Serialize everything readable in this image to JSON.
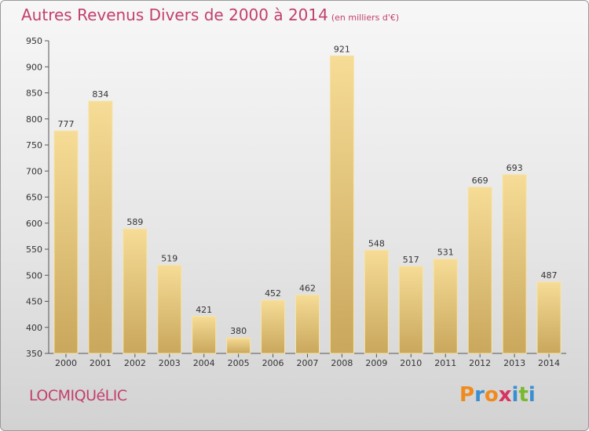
{
  "chart_data": {
    "type": "bar",
    "title": "Autres Revenus Divers de 2000 à 2014",
    "subtitle": "(en milliers d'€)",
    "categories": [
      "2000",
      "2001",
      "2002",
      "2003",
      "2004",
      "2005",
      "2006",
      "2007",
      "2008",
      "2009",
      "2010",
      "2011",
      "2012",
      "2013",
      "2014"
    ],
    "values": [
      777,
      834,
      589,
      519,
      421,
      380,
      452,
      462,
      921,
      548,
      517,
      531,
      669,
      693,
      487
    ],
    "ylim": [
      350,
      950
    ],
    "yticks": [
      350,
      400,
      450,
      500,
      550,
      600,
      650,
      700,
      750,
      800,
      850,
      900,
      950
    ],
    "grid": false,
    "xlabel": "",
    "ylabel": "",
    "bar_color": "#e8c878"
  },
  "footer": {
    "commune": "LOCMIQUéLIC",
    "brand": {
      "letters": [
        "P",
        "r",
        "o",
        "x",
        "i",
        "t",
        "i"
      ],
      "colors": [
        "#f08a1c",
        "#3a8fd0",
        "#f08a1c",
        "#d8345f",
        "#3a8fd0",
        "#7ab82e",
        "#3a8fd0"
      ]
    }
  },
  "colors": {
    "title": "#c2406e"
  }
}
